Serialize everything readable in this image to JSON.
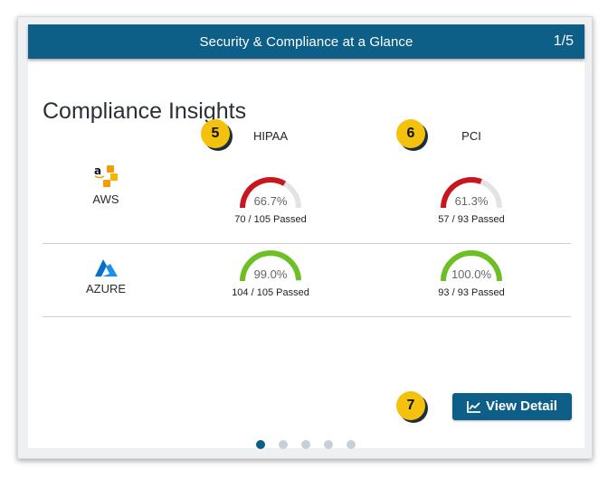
{
  "header": {
    "title": "Security & Compliance at a Glance",
    "pager": "1/5"
  },
  "section_title": "Compliance Insights",
  "columns": [
    {
      "label": "HIPAA",
      "badge": "5"
    },
    {
      "label": "PCI",
      "badge": "6"
    }
  ],
  "rows": [
    {
      "provider": "AWS",
      "logo_icon": "aws-icon",
      "cells": [
        {
          "percent": "66.7%",
          "value": 0.667,
          "passed": "70 / 105 Passed",
          "color": "#c8161d"
        },
        {
          "percent": "61.3%",
          "value": 0.613,
          "passed": "57 / 93 Passed",
          "color": "#c8161d"
        }
      ]
    },
    {
      "provider": "AZURE",
      "logo_icon": "azure-icon",
      "cells": [
        {
          "percent": "99.0%",
          "value": 0.99,
          "passed": "104 / 105 Passed",
          "color": "#6cc024"
        },
        {
          "percent": "100.0%",
          "value": 1.0,
          "passed": "93 / 93 Passed",
          "color": "#6cc024"
        }
      ]
    }
  ],
  "view_button": {
    "label": "View Detail",
    "icon": "chart-line-icon",
    "badge": "7"
  },
  "pagination": {
    "count": 5,
    "active": 0
  },
  "colors": {
    "brand": "#0e5f87",
    "badge": "#f4c20d",
    "fail": "#c8161d",
    "pass": "#6cc024",
    "track": "#e3e3e3"
  }
}
